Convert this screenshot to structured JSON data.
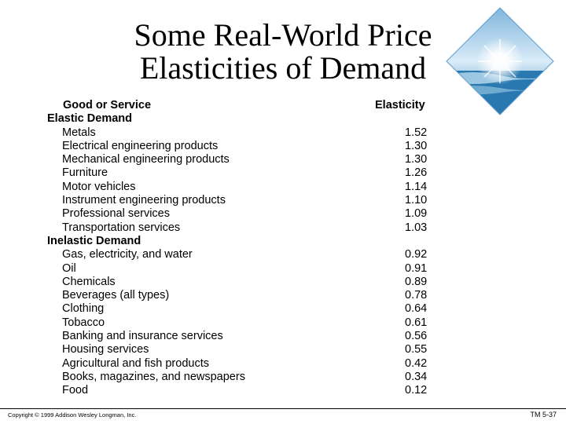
{
  "title": {
    "line1": "Some Real-World Price",
    "line2": "Elasticities of Demand"
  },
  "logo_icon": "sun-over-ocean-diamond-logo",
  "table": {
    "col_good": "Good or Service",
    "col_elasticity": "Elasticity",
    "elastic": {
      "label": "Elastic Demand",
      "items": [
        {
          "name": "Metals",
          "value": "1.52"
        },
        {
          "name": "Electrical engineering products",
          "value": "1.30"
        },
        {
          "name": "Mechanical engineering products",
          "value": "1.30"
        },
        {
          "name": "Furniture",
          "value": "1.26"
        },
        {
          "name": "Motor vehicles",
          "value": "1.14"
        },
        {
          "name": "Instrument engineering products",
          "value": "1.10"
        },
        {
          "name": "Professional services",
          "value": "1.09"
        },
        {
          "name": "Transportation services",
          "value": "1.03"
        }
      ]
    },
    "inelastic": {
      "label": "Inelastic Demand",
      "items": [
        {
          "name": "Gas, electricity, and water",
          "value": "0.92"
        },
        {
          "name": "Oil",
          "value": "0.91"
        },
        {
          "name": "Chemicals",
          "value": "0.89"
        },
        {
          "name": "Beverages (all types)",
          "value": "0.78"
        },
        {
          "name": "Clothing",
          "value": "0.64"
        },
        {
          "name": "Tobacco",
          "value": "0.61"
        },
        {
          "name": "Banking and insurance services",
          "value": "0.56"
        },
        {
          "name": "Housing services",
          "value": "0.55"
        },
        {
          "name": "Agricultural and fish products",
          "value": "0.42"
        },
        {
          "name": "Books, magazines, and newspapers",
          "value": "0.34"
        },
        {
          "name": "Food",
          "value": "0.12"
        }
      ]
    }
  },
  "footer": {
    "copyright": "Copyright © 1999 Addison Wesley Longman, Inc.",
    "slide_id": "TM 5-37"
  }
}
